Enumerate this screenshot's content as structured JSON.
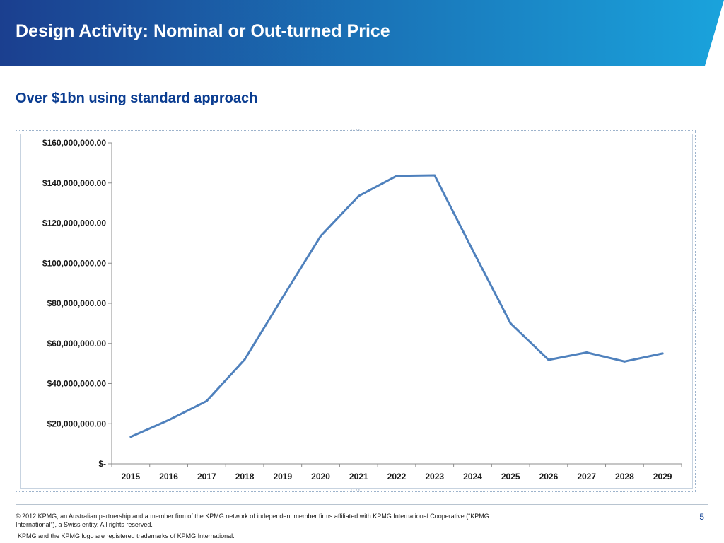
{
  "header": {
    "title": "Design Activity: Nominal or Out-turned Price",
    "gradient_start": "#1b3f8f",
    "gradient_end": "#1aa3dc"
  },
  "subtitle": "Over $1bn using standard approach",
  "chart_data": {
    "type": "line",
    "title": "",
    "xlabel": "",
    "ylabel": "",
    "ylim": [
      0,
      160000000
    ],
    "y_ticks": [
      0,
      20000000,
      40000000,
      60000000,
      80000000,
      100000000,
      120000000,
      140000000,
      160000000
    ],
    "y_tick_labels": [
      "$-",
      "$20,000,000.00",
      "$40,000,000.00",
      "$60,000,000.00",
      "$80,000,000.00",
      "$100,000,000.00",
      "$120,000,000.00",
      "$140,000,000.00",
      "$160,000,000.00"
    ],
    "categories": [
      "2015",
      "2016",
      "2017",
      "2018",
      "2019",
      "2020",
      "2021",
      "2022",
      "2023",
      "2024",
      "2025",
      "2026",
      "2027",
      "2028",
      "2029"
    ],
    "series": [
      {
        "values": [
          13500000,
          21800000,
          31300000,
          52000000,
          83000000,
          113500000,
          133500000,
          143500000,
          143800000,
          106500000,
          70000000,
          51800000,
          55500000,
          51000000,
          55000000
        ],
        "color": "#4f81bd"
      }
    ],
    "grid": false,
    "legend": "none"
  },
  "footer": {
    "copyright": "© 2012 KPMG, an Australian partnership and a member firm of the KPMG network of independent member firms affiliated with KPMG International Cooperative (“KPMG International”), a Swiss entity. All rights reserved.",
    "trademark": "KPMG and the KPMG logo are registered trademarks of KPMG International.",
    "page_number": "5"
  }
}
